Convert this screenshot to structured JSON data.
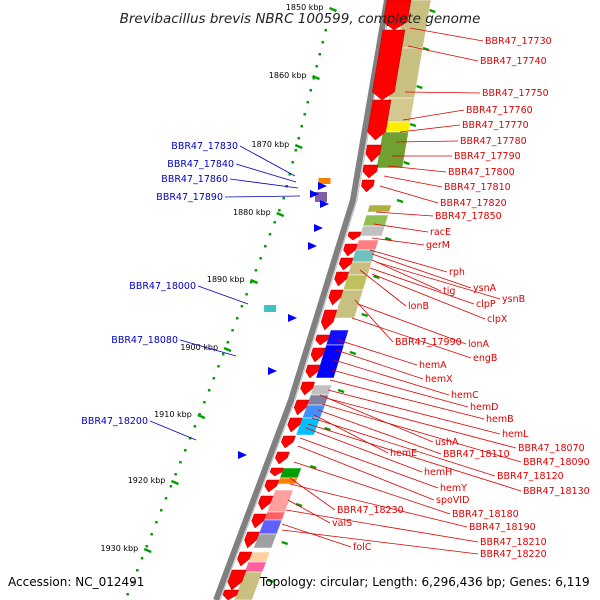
{
  "title": "Brevibacillus brevis NBRC 100599, complete genome",
  "footer": {
    "accession": "Accession: NC_012491",
    "topology": "Topology: circular; Length: 6,296,436 bp; Genes: 6,119"
  },
  "colors": {
    "forward_gene": "#ff0000",
    "reverse_gene": "#0000ff",
    "label_forward": "#e00000",
    "label_reverse": "#0000c0",
    "axis": "#808080",
    "tick": "#008000"
  },
  "kbp_ticks": [
    {
      "label": "1850 kbp",
      "kbp": 1850
    },
    {
      "label": "1860 kbp",
      "kbp": 1860
    },
    {
      "label": "1870 kbp",
      "kbp": 1870
    },
    {
      "label": "1880 kbp",
      "kbp": 1880
    },
    {
      "label": "1890 kbp",
      "kbp": 1890
    },
    {
      "label": "1900 kbp",
      "kbp": 1900
    },
    {
      "label": "1910 kbp",
      "kbp": 1910
    },
    {
      "label": "1920 kbp",
      "kbp": 1920
    },
    {
      "label": "1930 kbp",
      "kbp": 1930
    }
  ],
  "forward_labels": [
    "BBR47_17730",
    "BBR47_17740",
    "BBR47_17750",
    "BBR47_17760",
    "BBR47_17770",
    "BBR47_17780",
    "BBR47_17790",
    "BBR47_17800",
    "BBR47_17810",
    "BBR47_17820",
    "BBR47_17850",
    "racE",
    "gerM",
    "rph",
    "ysnA",
    "tig",
    "ysnB",
    "clpP",
    "lonB",
    "clpX",
    "BBR47_17990",
    "lonA",
    "engB",
    "hemA",
    "hemX",
    "hemC",
    "hemD",
    "hemB",
    "hemL",
    "ushA",
    "BBR47_18070",
    "BBR47_18110",
    "hemE",
    "BBR47_18090",
    "BBR47_18120",
    "hemH",
    "BBR47_18130",
    "hemY",
    "spoVID",
    "BBR47_18180",
    "BBR47_18230",
    "BBR47_18190",
    "valS",
    "BBR47_18210",
    "folC",
    "BBR47_18220"
  ],
  "reverse_labels": [
    "BBR47_17830",
    "BBR47_17840",
    "BBR47_17860",
    "BBR47_17890",
    "BBR47_18000",
    "BBR47_18080",
    "BBR47_18200"
  ]
}
